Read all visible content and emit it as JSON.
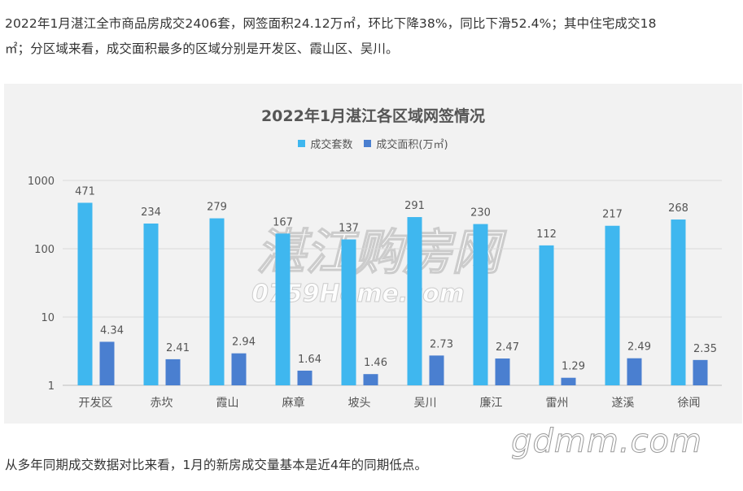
{
  "article": {
    "para1": "2022年1月湛江全市商品房成交2406套，网签面积24.12万㎡，环比下降38%，同比下滑52.4%；其中住宅成交18",
    "para1_cont": "㎡；分区域来看，成交面积最多的区域分别是开发区、霞山区、吴川。",
    "para2": "从多年同期成交数据对比来看，1月的新房成交量基本是近4年的同期低点。"
  },
  "watermarks": {
    "chart_wm_cn": "湛江购房网",
    "chart_wm_en": "0759Home.com",
    "page_wm": "gdmm.com"
  },
  "colors": {
    "series1": "#3fb7ef",
    "series2": "#4a7fd0",
    "panel_bg": "#f2f2f2"
  },
  "chart_data": {
    "type": "bar",
    "title": "2022年1月湛江各区域网签情况",
    "categories": [
      "开发区",
      "赤坎",
      "霞山",
      "麻章",
      "坡头",
      "吴川",
      "廉江",
      "雷州",
      "遂溪",
      "徐闻"
    ],
    "series": [
      {
        "name": "成交套数",
        "values": [
          471,
          234,
          279,
          167,
          137,
          291,
          230,
          112,
          217,
          268
        ]
      },
      {
        "name": "成交面积(万㎡)",
        "values": [
          4.34,
          2.41,
          2.94,
          1.64,
          1.46,
          2.73,
          2.47,
          1.29,
          2.49,
          2.35
        ]
      }
    ],
    "yscale": "log",
    "ylim": [
      1,
      1000
    ],
    "yticks": [
      "1",
      "10",
      "100",
      "1000"
    ],
    "legend_position": "top",
    "grid": true
  }
}
